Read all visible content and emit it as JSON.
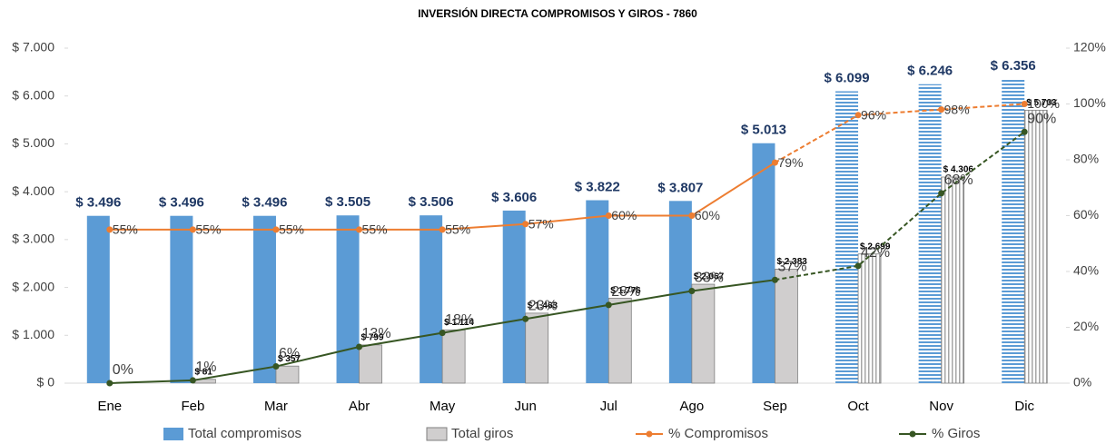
{
  "chart_data": {
    "type": "bar_line",
    "title": "INVERSIÓN DIRECTA COMPROMISOS Y GIROS - 7860",
    "categories": [
      "Ene",
      "Feb",
      "Mar",
      "Abr",
      "May",
      "Jun",
      "Jul",
      "Ago",
      "Sep",
      "Oct",
      "Nov",
      "Dic"
    ],
    "hatched_from_category": "Oct",
    "series": [
      {
        "name": "Total compromisos",
        "color": "#5b9bd5",
        "kind": "bar",
        "values": [
          3496,
          3496,
          3496,
          3505,
          3506,
          3606,
          3822,
          3807,
          5013,
          6099,
          6246,
          6356
        ],
        "value_labels": [
          "$ 3.496",
          "$ 3.496",
          "$ 3.496",
          "$ 3.505",
          "$ 3.506",
          "$ 3.606",
          "$ 3.822",
          "$ 3.807",
          "$ 5.013",
          "$ 6.099",
          "$ 6.246",
          "$ 6.356"
        ]
      },
      {
        "name": "Total giros",
        "color": "#d0cece",
        "kind": "bar",
        "values": [
          0,
          81,
          357,
          799,
          1114,
          1463,
          1776,
          2067,
          2383,
          2699,
          4306,
          5703
        ],
        "value_labels": [
          null,
          "$ 81",
          "$ 357",
          "$ 799",
          "$ 1.114",
          "$ 1.463",
          "$ 1.776",
          "$ 2.067",
          "$ 2.383",
          "$ 2.699",
          "$ 4.306",
          "$ 5.703"
        ]
      },
      {
        "name": "% Compromisos",
        "color": "#ed7d31",
        "kind": "line",
        "axis": "y2",
        "values": [
          55,
          55,
          55,
          55,
          55,
          57,
          60,
          60,
          79,
          96,
          98,
          100
        ],
        "value_labels": [
          "55%",
          "55%",
          "55%",
          "55%",
          "55%",
          "57%",
          "60%",
          "60%",
          "79%",
          "96%",
          "98%",
          "100%"
        ]
      },
      {
        "name": "% Giros",
        "color": "#375623",
        "kind": "line",
        "axis": "y2",
        "values": [
          0,
          1,
          6,
          13,
          18,
          23,
          28,
          33,
          37,
          42,
          68,
          90
        ],
        "value_labels": [
          "0%",
          "1%",
          "6%",
          "13%",
          "18%",
          "23%",
          "28%",
          "33%",
          "37%",
          "42%",
          "68%",
          "90%"
        ]
      }
    ],
    "ylim": [
      0,
      7000
    ],
    "yticks": [
      {
        "value": 0,
        "label": "$ 0"
      },
      {
        "value": 1000,
        "label": "$ 1.000"
      },
      {
        "value": 2000,
        "label": "$ 2.000"
      },
      {
        "value": 3000,
        "label": "$ 3.000"
      },
      {
        "value": 4000,
        "label": "$ 4.000"
      },
      {
        "value": 5000,
        "label": "$ 5.000"
      },
      {
        "value": 6000,
        "label": "$ 6.000"
      },
      {
        "value": 7000,
        "label": "$ 7.000"
      }
    ],
    "y2lim": [
      0,
      120
    ],
    "y2ticks": [
      {
        "value": 0,
        "label": "0%"
      },
      {
        "value": 20,
        "label": "20%"
      },
      {
        "value": 40,
        "label": "40%"
      },
      {
        "value": 60,
        "label": "60%"
      },
      {
        "value": 80,
        "label": "80%"
      },
      {
        "value": 100,
        "label": "100%"
      },
      {
        "value": 120,
        "label": "120%"
      }
    ],
    "legend": "bottom"
  }
}
